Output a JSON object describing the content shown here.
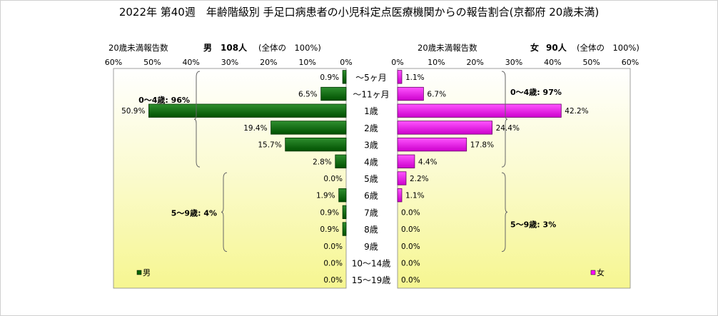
{
  "title": "2022年 第40週　年齢階級別 手足口病患者の小児科定点医療機関からの報告割合(京都府 20歳未満)",
  "chart_data": {
    "type": "bar",
    "orientation": "horizontal",
    "categories": [
      "～5ヶ月",
      "～11ヶ月",
      "1歳",
      "2歳",
      "3歳",
      "4歳",
      "5歳",
      "6歳",
      "7歳",
      "8歳",
      "9歳",
      "10～14歳",
      "15～19歳"
    ],
    "panels": [
      {
        "side": "left",
        "header_label": "20歳未満報告数",
        "sex": "男",
        "count": "108人",
        "total_note": "(全体の　100%)",
        "legend": "男",
        "color": "#006400",
        "xlim": [
          0,
          60
        ],
        "ticks": [
          "0%",
          "10%",
          "20%",
          "30%",
          "40%",
          "50%",
          "60%"
        ],
        "values": [
          0.9,
          6.5,
          50.9,
          19.4,
          15.7,
          2.8,
          0.0,
          1.9,
          0.9,
          0.9,
          0.0,
          0.0,
          0.0
        ],
        "labels": [
          "0.9%",
          "6.5%",
          "50.9%",
          "19.4%",
          "15.7%",
          "2.8%",
          "0.0%",
          "1.9%",
          "0.9%",
          "0.9%",
          "0.0%",
          "0.0%",
          "0.0%"
        ],
        "groups": [
          {
            "text": "0～4歳: 96%",
            "from": 0,
            "to": 5
          },
          {
            "text": "5～9歳: 4%",
            "from": 6,
            "to": 10
          }
        ]
      },
      {
        "side": "right",
        "header_label": "20歳未満報告数",
        "sex": "女",
        "count": "90人",
        "total_note": "(全体の　100%)",
        "legend": "女",
        "color": "#ff00ff",
        "xlim": [
          0,
          60
        ],
        "ticks": [
          "0%",
          "10%",
          "20%",
          "30%",
          "40%",
          "50%",
          "60%"
        ],
        "values": [
          1.1,
          6.7,
          42.2,
          24.4,
          17.8,
          4.4,
          2.2,
          1.1,
          0.0,
          0.0,
          0.0,
          0.0,
          0.0
        ],
        "labels": [
          "1.1%",
          "6.7%",
          "42.2%",
          "24.4%",
          "17.8%",
          "4.4%",
          "2.2%",
          "1.1%",
          "0.0%",
          "0.0%",
          "0.0%",
          "0.0%",
          "0.0%"
        ],
        "groups": [
          {
            "text": "0～4歳: 97%",
            "from": 0,
            "to": 5
          },
          {
            "text": "5～9歳: 3%",
            "from": 6,
            "to": 10
          }
        ]
      }
    ],
    "grid": false
  }
}
